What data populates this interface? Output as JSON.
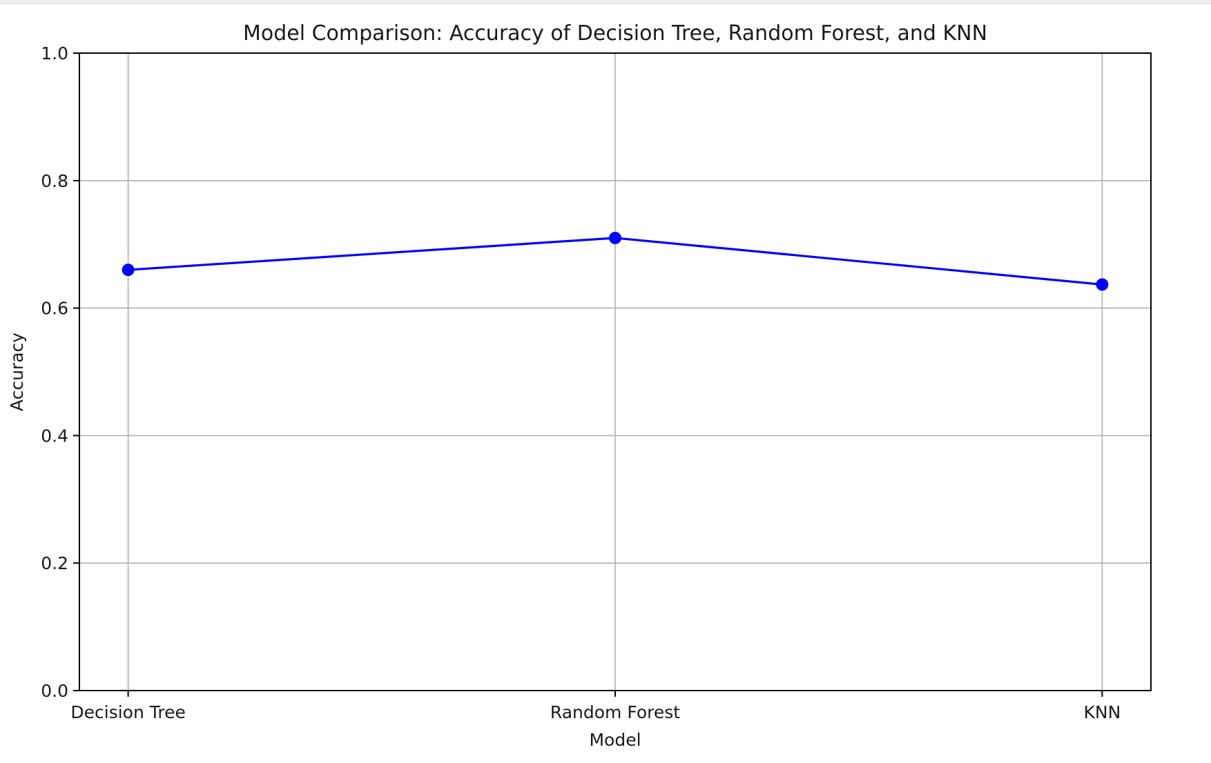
{
  "chart_data": {
    "type": "line",
    "title": "Model Comparison: Accuracy of Decision Tree, Random Forest, and KNN",
    "xlabel": "Model",
    "ylabel": "Accuracy",
    "categories": [
      "Decision Tree",
      "Random Forest",
      "KNN"
    ],
    "series": [
      {
        "values": [
          0.66,
          0.71,
          0.637
        ],
        "color": "#0000ff",
        "marker": "circle"
      }
    ],
    "ylim": [
      0.0,
      1.0
    ],
    "yticks": [
      "0.0",
      "0.2",
      "0.4",
      "0.6",
      "0.8",
      "1.0"
    ],
    "grid": true
  }
}
